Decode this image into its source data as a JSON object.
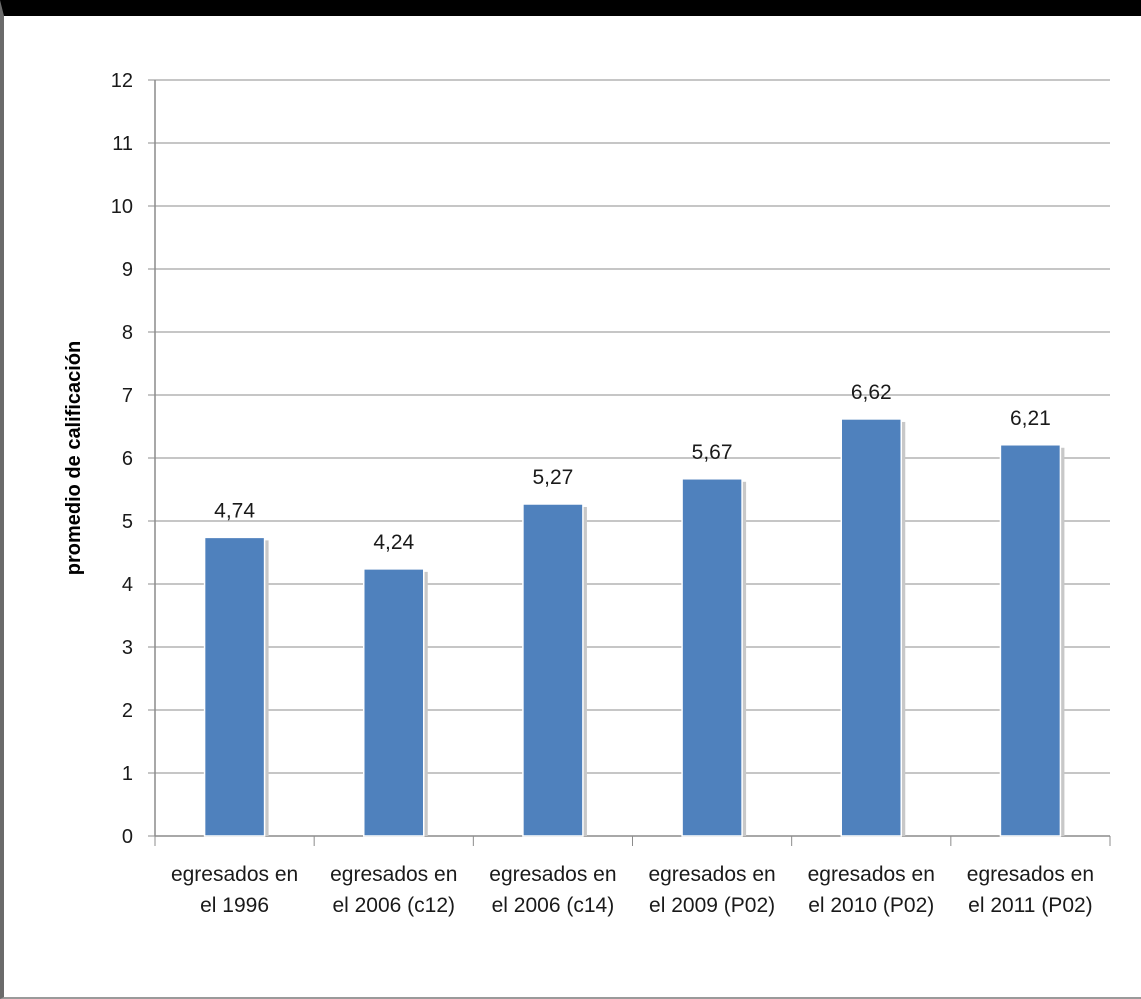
{
  "chart_data": {
    "type": "bar",
    "title": "",
    "xlabel": "",
    "ylabel": "promedio de calificación",
    "ylim": [
      0,
      12
    ],
    "yticks": [
      "0",
      "1",
      "2",
      "3",
      "4",
      "5",
      "6",
      "7",
      "8",
      "9",
      "10",
      "11",
      "12"
    ],
    "grid": true,
    "legend": "none",
    "bar_color": "#4f81bd",
    "categories": [
      [
        "egresados en",
        "el 1996"
      ],
      [
        "egresados en",
        "el 2006 (c12)"
      ],
      [
        "egresados en",
        "el 2006 (c14)"
      ],
      [
        "egresados en",
        "el 2009 (P02)"
      ],
      [
        "egresados en",
        "el 2010 (P02)"
      ],
      [
        "egresados en",
        "el 2011 (P02)"
      ]
    ],
    "values": [
      4.74,
      4.24,
      5.27,
      5.67,
      6.62,
      6.21
    ],
    "data_labels": [
      "4,74",
      "4,24",
      "5,27",
      "5,67",
      "6,62",
      "6,21"
    ]
  }
}
